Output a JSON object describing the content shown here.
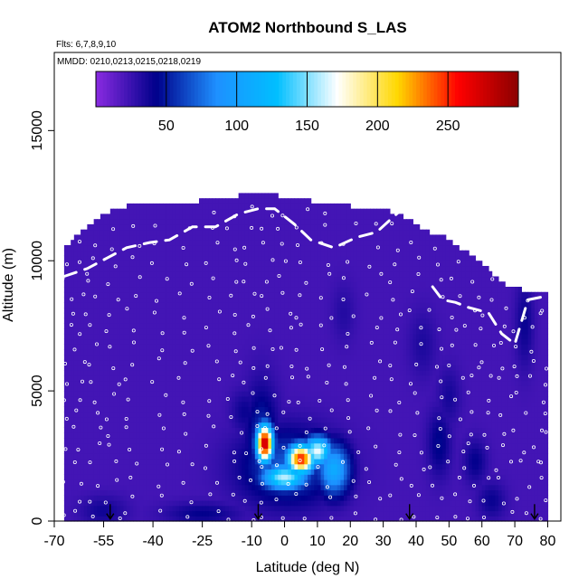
{
  "chart_data": {
    "type": "heatmap",
    "title": "ATOM2 Northbound S_LAS",
    "note_flights": "Flts: 6,7,8,9,10",
    "note_dates": "MMDD: 0210,0213,0215,0218,0219",
    "xlabel": "Latitude (deg N)",
    "ylabel": "Altitude (m)",
    "xlim": [
      -70,
      84
    ],
    "ylim": [
      0,
      18000
    ],
    "x_ticks": [
      -70,
      -55,
      -40,
      -25,
      -10,
      0,
      10,
      20,
      30,
      40,
      50,
      60,
      70,
      80
    ],
    "y_ticks": [
      0,
      5000,
      10000,
      15000
    ],
    "colorbar": {
      "range": [
        0,
        300
      ],
      "ticks": [
        50,
        100,
        150,
        200,
        250
      ],
      "colors": [
        "#8a2be2",
        "#00008b",
        "#1e90ff",
        "#00bfff",
        "#ffffff",
        "#ffd700",
        "#ff0000",
        "#8b0000"
      ]
    },
    "background_value": 22,
    "data_top_profile": [
      [
        -68,
        10200
      ],
      [
        -64,
        10800
      ],
      [
        -60,
        11200
      ],
      [
        -56,
        11600
      ],
      [
        -52,
        11900
      ],
      [
        -48,
        12000
      ],
      [
        -44,
        12050
      ],
      [
        -40,
        12050
      ],
      [
        -36,
        12100
      ],
      [
        -32,
        12100
      ],
      [
        -28,
        12150
      ],
      [
        -24,
        12250
      ],
      [
        -20,
        12300
      ],
      [
        -16,
        12350
      ],
      [
        -12,
        12450
      ],
      [
        -8,
        12500
      ],
      [
        -4,
        12450
      ],
      [
        0,
        12350
      ],
      [
        4,
        12300
      ],
      [
        8,
        12200
      ],
      [
        12,
        12150
      ],
      [
        16,
        12100
      ],
      [
        20,
        12000
      ],
      [
        24,
        12000
      ],
      [
        28,
        11900
      ],
      [
        32,
        11800
      ],
      [
        36,
        11600
      ],
      [
        40,
        11300
      ],
      [
        44,
        11000
      ],
      [
        48,
        10900
      ],
      [
        52,
        10500
      ],
      [
        56,
        10200
      ],
      [
        60,
        9800
      ],
      [
        64,
        9300
      ],
      [
        68,
        8900
      ],
      [
        72,
        8800
      ],
      [
        76,
        8700
      ],
      [
        80,
        8600
      ]
    ],
    "enhancements": [
      {
        "lat": -6,
        "alt": 3000,
        "sx": 1.8,
        "sy": 500,
        "value": 285
      },
      {
        "lat": 5,
        "alt": 2400,
        "sx": 3.0,
        "sy": 400,
        "value": 255
      },
      {
        "lat": 10,
        "alt": 2700,
        "sx": 3.0,
        "sy": 400,
        "value": 170
      },
      {
        "lat": 0,
        "alt": 1700,
        "sx": 5.0,
        "sy": 350,
        "value": 160
      },
      {
        "lat": 15,
        "alt": 2000,
        "sx": 3.5,
        "sy": 700,
        "value": 110
      },
      {
        "lat": 1,
        "alt": 2100,
        "sx": 10.0,
        "sy": 1000,
        "value": 70
      },
      {
        "lat": -7,
        "alt": 3000,
        "sx": 3.5,
        "sy": 1500,
        "value": 60
      },
      {
        "lat": -25,
        "alt": 300,
        "sx": 8.0,
        "sy": 300,
        "value": 42
      },
      {
        "lat": -55,
        "alt": 400,
        "sx": 5.0,
        "sy": 400,
        "value": 38
      },
      {
        "lat": -12,
        "alt": 4200,
        "sx": 3.0,
        "sy": 600,
        "value": 40
      },
      {
        "lat": 47,
        "alt": 3000,
        "sx": 2.5,
        "sy": 900,
        "value": 45
      },
      {
        "lat": 58,
        "alt": 2300,
        "sx": 2.5,
        "sy": 600,
        "value": 42
      },
      {
        "lat": 63,
        "alt": 800,
        "sx": 3.0,
        "sy": 500,
        "value": 40
      },
      {
        "lat": 73,
        "alt": 7600,
        "sx": 2.0,
        "sy": 1200,
        "value": 40
      },
      {
        "lat": 42,
        "alt": 6800,
        "sx": 3.0,
        "sy": 900,
        "value": 34
      },
      {
        "lat": 18,
        "alt": 8000,
        "sx": 2.5,
        "sy": 800,
        "value": 32
      },
      {
        "lat": 50,
        "alt": 4800,
        "sx": 2.5,
        "sy": 800,
        "value": 36
      }
    ],
    "flight_tracks": [
      [
        [
          -67,
          9400
        ],
        [
          -60,
          9700
        ],
        [
          -54,
          10100
        ],
        [
          -48,
          10500
        ],
        [
          -41,
          10700
        ],
        [
          -35,
          10800
        ],
        [
          -28,
          11300
        ],
        [
          -21,
          11300
        ],
        [
          -14,
          11800
        ],
        [
          -8,
          12000
        ],
        [
          -3,
          12000
        ],
        [
          3,
          11400
        ],
        [
          8,
          10800
        ],
        [
          15,
          10500
        ],
        [
          22,
          10900
        ],
        [
          28,
          11100
        ],
        [
          35,
          11900
        ],
        [
          41,
          11900
        ]
      ],
      [
        [
          45,
          9000
        ],
        [
          48,
          8500
        ],
        [
          52,
          8400
        ],
        [
          56,
          8200
        ],
        [
          62,
          8000
        ],
        [
          66,
          7200
        ],
        [
          70,
          6800
        ],
        [
          74,
          8500
        ],
        [
          78,
          8600
        ]
      ]
    ],
    "vertical_profiles_lat": [
      -67,
      -62,
      -58,
      -52,
      -46,
      -38,
      -30,
      -22,
      -15,
      -10,
      -5,
      0,
      6,
      12,
      20,
      27,
      34,
      40,
      46,
      52,
      57,
      62,
      67,
      72,
      77,
      80
    ],
    "descent_markers_lat": [
      -53,
      -8,
      38,
      76
    ]
  }
}
